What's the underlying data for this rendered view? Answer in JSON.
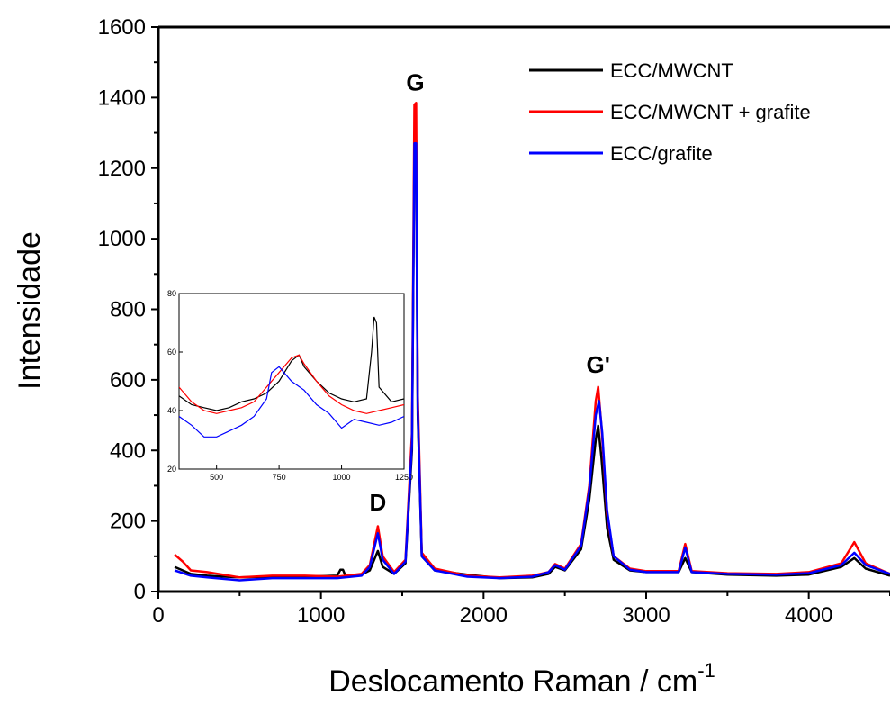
{
  "chart_data": {
    "type": "line",
    "title": "",
    "xlabel": "Deslocamento Raman / cm",
    "xlabel_superscript": "-1",
    "ylabel": "Intensidade",
    "xlim": [
      0,
      4500
    ],
    "ylim": [
      0,
      1600
    ],
    "x_ticks": [
      0,
      1000,
      2000,
      3000,
      4000
    ],
    "y_ticks": [
      0,
      200,
      400,
      600,
      800,
      1000,
      1200,
      1400,
      1600
    ],
    "legend_position": "top-right",
    "grid": false,
    "series": [
      {
        "name": "ECC/MWCNT",
        "color": "#000000",
        "points": [
          [
            100,
            70
          ],
          [
            200,
            50
          ],
          [
            300,
            45
          ],
          [
            500,
            40
          ],
          [
            700,
            42
          ],
          [
            900,
            42
          ],
          [
            1100,
            45
          ],
          [
            1120,
            62
          ],
          [
            1135,
            62
          ],
          [
            1150,
            45
          ],
          [
            1250,
            48
          ],
          [
            1300,
            60
          ],
          [
            1350,
            115
          ],
          [
            1380,
            70
          ],
          [
            1450,
            50
          ],
          [
            1520,
            80
          ],
          [
            1560,
            400
          ],
          [
            1575,
            1250
          ],
          [
            1585,
            1280
          ],
          [
            1595,
            500
          ],
          [
            1620,
            100
          ],
          [
            1700,
            60
          ],
          [
            1900,
            48
          ],
          [
            2100,
            38
          ],
          [
            2300,
            40
          ],
          [
            2400,
            50
          ],
          [
            2440,
            70
          ],
          [
            2500,
            60
          ],
          [
            2600,
            120
          ],
          [
            2650,
            260
          ],
          [
            2690,
            430
          ],
          [
            2705,
            470
          ],
          [
            2725,
            380
          ],
          [
            2760,
            180
          ],
          [
            2800,
            90
          ],
          [
            2900,
            60
          ],
          [
            3000,
            55
          ],
          [
            3200,
            55
          ],
          [
            3240,
            95
          ],
          [
            3280,
            55
          ],
          [
            3500,
            48
          ],
          [
            3800,
            45
          ],
          [
            4000,
            48
          ],
          [
            4200,
            70
          ],
          [
            4280,
            95
          ],
          [
            4350,
            65
          ],
          [
            4500,
            45
          ]
        ]
      },
      {
        "name": "ECC/MWCNT + grafite",
        "color": "#ff0000",
        "points": [
          [
            100,
            105
          ],
          [
            150,
            85
          ],
          [
            200,
            60
          ],
          [
            300,
            55
          ],
          [
            500,
            40
          ],
          [
            700,
            45
          ],
          [
            900,
            45
          ],
          [
            1100,
            42
          ],
          [
            1250,
            50
          ],
          [
            1300,
            75
          ],
          [
            1350,
            185
          ],
          [
            1380,
            100
          ],
          [
            1450,
            55
          ],
          [
            1520,
            90
          ],
          [
            1560,
            450
          ],
          [
            1575,
            1380
          ],
          [
            1585,
            1385
          ],
          [
            1595,
            560
          ],
          [
            1620,
            110
          ],
          [
            1700,
            65
          ],
          [
            1900,
            45
          ],
          [
            2100,
            40
          ],
          [
            2300,
            45
          ],
          [
            2400,
            55
          ],
          [
            2440,
            78
          ],
          [
            2500,
            65
          ],
          [
            2600,
            135
          ],
          [
            2650,
            300
          ],
          [
            2690,
            540
          ],
          [
            2705,
            580
          ],
          [
            2725,
            470
          ],
          [
            2760,
            220
          ],
          [
            2800,
            100
          ],
          [
            2900,
            65
          ],
          [
            3000,
            58
          ],
          [
            3200,
            58
          ],
          [
            3240,
            135
          ],
          [
            3280,
            58
          ],
          [
            3500,
            52
          ],
          [
            3800,
            50
          ],
          [
            4000,
            55
          ],
          [
            4200,
            80
          ],
          [
            4280,
            140
          ],
          [
            4350,
            80
          ],
          [
            4500,
            50
          ]
        ]
      },
      {
        "name": "ECC/grafite",
        "color": "#0000ff",
        "points": [
          [
            100,
            60
          ],
          [
            200,
            45
          ],
          [
            300,
            40
          ],
          [
            500,
            32
          ],
          [
            700,
            38
          ],
          [
            900,
            38
          ],
          [
            1100,
            38
          ],
          [
            1250,
            45
          ],
          [
            1300,
            70
          ],
          [
            1350,
            165
          ],
          [
            1380,
            90
          ],
          [
            1450,
            50
          ],
          [
            1520,
            85
          ],
          [
            1560,
            420
          ],
          [
            1575,
            1270
          ],
          [
            1585,
            1270
          ],
          [
            1595,
            520
          ],
          [
            1620,
            100
          ],
          [
            1700,
            60
          ],
          [
            1900,
            42
          ],
          [
            2100,
            38
          ],
          [
            2300,
            42
          ],
          [
            2400,
            55
          ],
          [
            2440,
            75
          ],
          [
            2500,
            62
          ],
          [
            2600,
            130
          ],
          [
            2650,
            290
          ],
          [
            2690,
            500
          ],
          [
            2710,
            540
          ],
          [
            2730,
            450
          ],
          [
            2760,
            230
          ],
          [
            2800,
            100
          ],
          [
            2900,
            62
          ],
          [
            3000,
            55
          ],
          [
            3200,
            55
          ],
          [
            3240,
            125
          ],
          [
            3280,
            55
          ],
          [
            3500,
            50
          ],
          [
            3800,
            48
          ],
          [
            4000,
            52
          ],
          [
            4200,
            75
          ],
          [
            4280,
            110
          ],
          [
            4350,
            75
          ],
          [
            4500,
            50
          ]
        ]
      }
    ],
    "annotations": [
      {
        "text": "D",
        "x": 1350,
        "y": 230
      },
      {
        "text": "G",
        "x": 1580,
        "y": 1420
      },
      {
        "text": "G'",
        "x": 2705,
        "y": 620
      }
    ],
    "inset": {
      "xlim": [
        350,
        1250
      ],
      "ylim": [
        20,
        80
      ],
      "x_ticks": [
        500,
        750,
        1000,
        1250
      ],
      "y_ticks": [
        20,
        40,
        60,
        80
      ],
      "series": [
        {
          "color": "#000000",
          "points": [
            [
              350,
              45
            ],
            [
              400,
              42
            ],
            [
              450,
              41
            ],
            [
              500,
              40
            ],
            [
              550,
              41
            ],
            [
              600,
              43
            ],
            [
              650,
              44
            ],
            [
              700,
              46
            ],
            [
              750,
              50
            ],
            [
              800,
              57
            ],
            [
              830,
              59
            ],
            [
              850,
              55
            ],
            [
              900,
              50
            ],
            [
              950,
              46
            ],
            [
              1000,
              44
            ],
            [
              1050,
              43
            ],
            [
              1100,
              44
            ],
            [
              1120,
              60
            ],
            [
              1130,
              72
            ],
            [
              1140,
              70
            ],
            [
              1150,
              48
            ],
            [
              1200,
              43
            ],
            [
              1250,
              44
            ]
          ]
        },
        {
          "color": "#ff0000",
          "points": [
            [
              350,
              48
            ],
            [
              400,
              43
            ],
            [
              450,
              40
            ],
            [
              500,
              39
            ],
            [
              550,
              40
            ],
            [
              600,
              41
            ],
            [
              650,
              43
            ],
            [
              700,
              48
            ],
            [
              750,
              53
            ],
            [
              800,
              58
            ],
            [
              830,
              59
            ],
            [
              850,
              56
            ],
            [
              900,
              50
            ],
            [
              950,
              45
            ],
            [
              1000,
              42
            ],
            [
              1050,
              40
            ],
            [
              1100,
              39
            ],
            [
              1150,
              40
            ],
            [
              1200,
              41
            ],
            [
              1250,
              42
            ]
          ]
        },
        {
          "color": "#0000ff",
          "points": [
            [
              350,
              38
            ],
            [
              400,
              35
            ],
            [
              450,
              31
            ],
            [
              500,
              31
            ],
            [
              550,
              33
            ],
            [
              600,
              35
            ],
            [
              650,
              38
            ],
            [
              700,
              44
            ],
            [
              720,
              53
            ],
            [
              750,
              55
            ],
            [
              800,
              50
            ],
            [
              850,
              47
            ],
            [
              900,
              42
            ],
            [
              950,
              39
            ],
            [
              1000,
              34
            ],
            [
              1050,
              37
            ],
            [
              1100,
              36
            ],
            [
              1150,
              35
            ],
            [
              1200,
              36
            ],
            [
              1250,
              38
            ]
          ]
        }
      ]
    }
  }
}
